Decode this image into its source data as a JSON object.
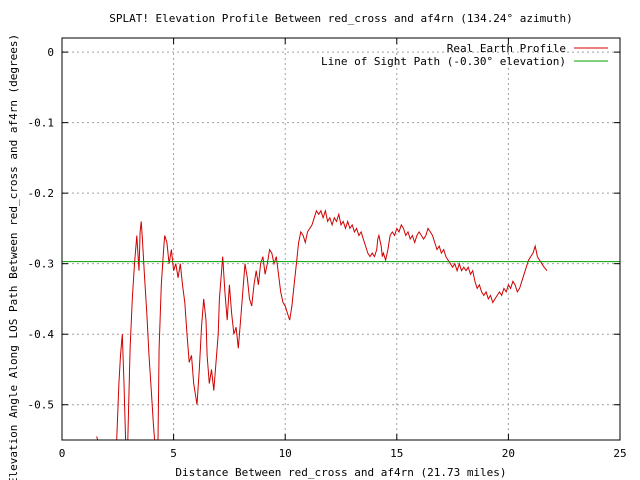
{
  "chart_data": {
    "type": "line",
    "title": "SPLAT! Elevation Profile Between red_cross and af4rn (134.24° azimuth)",
    "xlabel": "Distance Between red_cross and af4rn (21.73 miles)",
    "ylabel": "Elevation Angle Along LOS Path Between red_cross and af4rn (degrees)",
    "xlim": [
      0,
      25
    ],
    "ylim": [
      -0.55,
      0.02
    ],
    "x_ticks": [
      0,
      5,
      10,
      15,
      20,
      25
    ],
    "x_tick_labels": [
      "0",
      "5",
      "10",
      "15",
      "20",
      "25"
    ],
    "y_ticks": [
      0,
      -0.1,
      -0.2,
      -0.3,
      -0.4,
      -0.5
    ],
    "y_tick_labels": [
      "0",
      "-0.1",
      "-0.2",
      "-0.3",
      "-0.4",
      "-0.5"
    ],
    "grid": true,
    "legend_position": "top-right",
    "series": [
      {
        "name": "Real Earth Profile",
        "color": "#d00000",
        "points": [
          [
            1.55,
            -0.545
          ],
          [
            1.6,
            -0.55
          ],
          [
            2.45,
            -0.55
          ],
          [
            2.55,
            -0.47
          ],
          [
            2.62,
            -0.43
          ],
          [
            2.7,
            -0.4
          ],
          [
            2.78,
            -0.47
          ],
          [
            2.85,
            -0.55
          ],
          [
            2.95,
            -0.55
          ],
          [
            3.05,
            -0.42
          ],
          [
            3.15,
            -0.35
          ],
          [
            3.25,
            -0.3
          ],
          [
            3.35,
            -0.26
          ],
          [
            3.45,
            -0.31
          ],
          [
            3.5,
            -0.255
          ],
          [
            3.55,
            -0.24
          ],
          [
            3.6,
            -0.265
          ],
          [
            3.7,
            -0.32
          ],
          [
            3.8,
            -0.37
          ],
          [
            3.9,
            -0.43
          ],
          [
            4.0,
            -0.48
          ],
          [
            4.1,
            -0.53
          ],
          [
            4.15,
            -0.55
          ],
          [
            4.3,
            -0.55
          ],
          [
            4.35,
            -0.42
          ],
          [
            4.45,
            -0.33
          ],
          [
            4.55,
            -0.28
          ],
          [
            4.6,
            -0.26
          ],
          [
            4.7,
            -0.27
          ],
          [
            4.8,
            -0.3
          ],
          [
            4.9,
            -0.28
          ],
          [
            5.0,
            -0.31
          ],
          [
            5.1,
            -0.3
          ],
          [
            5.2,
            -0.32
          ],
          [
            5.3,
            -0.3
          ],
          [
            5.4,
            -0.33
          ],
          [
            5.5,
            -0.355
          ],
          [
            5.6,
            -0.4
          ],
          [
            5.7,
            -0.44
          ],
          [
            5.8,
            -0.43
          ],
          [
            5.9,
            -0.47
          ],
          [
            6.0,
            -0.49
          ],
          [
            6.05,
            -0.5
          ],
          [
            6.15,
            -0.45
          ],
          [
            6.25,
            -0.39
          ],
          [
            6.35,
            -0.35
          ],
          [
            6.45,
            -0.38
          ],
          [
            6.5,
            -0.43
          ],
          [
            6.6,
            -0.47
          ],
          [
            6.7,
            -0.45
          ],
          [
            6.8,
            -0.48
          ],
          [
            6.9,
            -0.44
          ],
          [
            7.0,
            -0.4
          ],
          [
            7.05,
            -0.35
          ],
          [
            7.15,
            -0.31
          ],
          [
            7.2,
            -0.29
          ],
          [
            7.3,
            -0.34
          ],
          [
            7.4,
            -0.38
          ],
          [
            7.5,
            -0.33
          ],
          [
            7.6,
            -0.37
          ],
          [
            7.7,
            -0.4
          ],
          [
            7.8,
            -0.39
          ],
          [
            7.9,
            -0.42
          ],
          [
            8.0,
            -0.38
          ],
          [
            8.1,
            -0.34
          ],
          [
            8.2,
            -0.3
          ],
          [
            8.3,
            -0.32
          ],
          [
            8.4,
            -0.35
          ],
          [
            8.5,
            -0.36
          ],
          [
            8.6,
            -0.33
          ],
          [
            8.7,
            -0.31
          ],
          [
            8.8,
            -0.33
          ],
          [
            8.9,
            -0.3
          ],
          [
            9.0,
            -0.29
          ],
          [
            9.1,
            -0.315
          ],
          [
            9.2,
            -0.3
          ],
          [
            9.3,
            -0.28
          ],
          [
            9.4,
            -0.285
          ],
          [
            9.5,
            -0.3
          ],
          [
            9.6,
            -0.29
          ],
          [
            9.7,
            -0.315
          ],
          [
            9.8,
            -0.34
          ],
          [
            9.9,
            -0.355
          ],
          [
            10.0,
            -0.36
          ],
          [
            10.1,
            -0.37
          ],
          [
            10.2,
            -0.38
          ],
          [
            10.3,
            -0.36
          ],
          [
            10.4,
            -0.33
          ],
          [
            10.5,
            -0.3
          ],
          [
            10.6,
            -0.27
          ],
          [
            10.7,
            -0.255
          ],
          [
            10.8,
            -0.26
          ],
          [
            10.9,
            -0.27
          ],
          [
            11.0,
            -0.255
          ],
          [
            11.1,
            -0.25
          ],
          [
            11.2,
            -0.245
          ],
          [
            11.3,
            -0.235
          ],
          [
            11.4,
            -0.225
          ],
          [
            11.5,
            -0.23
          ],
          [
            11.6,
            -0.225
          ],
          [
            11.7,
            -0.235
          ],
          [
            11.8,
            -0.225
          ],
          [
            11.9,
            -0.24
          ],
          [
            12.0,
            -0.235
          ],
          [
            12.1,
            -0.245
          ],
          [
            12.2,
            -0.235
          ],
          [
            12.3,
            -0.24
          ],
          [
            12.4,
            -0.23
          ],
          [
            12.5,
            -0.245
          ],
          [
            12.6,
            -0.24
          ],
          [
            12.7,
            -0.25
          ],
          [
            12.8,
            -0.24
          ],
          [
            12.9,
            -0.25
          ],
          [
            13.0,
            -0.245
          ],
          [
            13.1,
            -0.255
          ],
          [
            13.2,
            -0.25
          ],
          [
            13.3,
            -0.26
          ],
          [
            13.4,
            -0.255
          ],
          [
            13.5,
            -0.265
          ],
          [
            13.6,
            -0.275
          ],
          [
            13.7,
            -0.285
          ],
          [
            13.8,
            -0.29
          ],
          [
            13.9,
            -0.285
          ],
          [
            14.0,
            -0.29
          ],
          [
            14.1,
            -0.28
          ],
          [
            14.15,
            -0.265
          ],
          [
            14.2,
            -0.26
          ],
          [
            14.3,
            -0.275
          ],
          [
            14.35,
            -0.29
          ],
          [
            14.4,
            -0.285
          ],
          [
            14.5,
            -0.295
          ],
          [
            14.6,
            -0.28
          ],
          [
            14.7,
            -0.26
          ],
          [
            14.8,
            -0.255
          ],
          [
            14.9,
            -0.26
          ],
          [
            15.0,
            -0.25
          ],
          [
            15.1,
            -0.255
          ],
          [
            15.2,
            -0.245
          ],
          [
            15.3,
            -0.25
          ],
          [
            15.4,
            -0.26
          ],
          [
            15.5,
            -0.255
          ],
          [
            15.6,
            -0.265
          ],
          [
            15.7,
            -0.26
          ],
          [
            15.8,
            -0.27
          ],
          [
            15.9,
            -0.26
          ],
          [
            16.0,
            -0.255
          ],
          [
            16.1,
            -0.26
          ],
          [
            16.2,
            -0.265
          ],
          [
            16.3,
            -0.26
          ],
          [
            16.4,
            -0.25
          ],
          [
            16.5,
            -0.255
          ],
          [
            16.6,
            -0.26
          ],
          [
            16.7,
            -0.27
          ],
          [
            16.8,
            -0.28
          ],
          [
            16.9,
            -0.275
          ],
          [
            17.0,
            -0.285
          ],
          [
            17.1,
            -0.28
          ],
          [
            17.2,
            -0.29
          ],
          [
            17.3,
            -0.295
          ],
          [
            17.4,
            -0.3
          ],
          [
            17.5,
            -0.305
          ],
          [
            17.6,
            -0.3
          ],
          [
            17.7,
            -0.31
          ],
          [
            17.8,
            -0.3
          ],
          [
            17.9,
            -0.31
          ],
          [
            18.0,
            -0.305
          ],
          [
            18.1,
            -0.31
          ],
          [
            18.2,
            -0.305
          ],
          [
            18.3,
            -0.315
          ],
          [
            18.4,
            -0.31
          ],
          [
            18.5,
            -0.325
          ],
          [
            18.6,
            -0.335
          ],
          [
            18.7,
            -0.33
          ],
          [
            18.8,
            -0.34
          ],
          [
            18.9,
            -0.345
          ],
          [
            19.0,
            -0.34
          ],
          [
            19.1,
            -0.35
          ],
          [
            19.2,
            -0.345
          ],
          [
            19.3,
            -0.355
          ],
          [
            19.4,
            -0.35
          ],
          [
            19.5,
            -0.345
          ],
          [
            19.6,
            -0.34
          ],
          [
            19.7,
            -0.345
          ],
          [
            19.8,
            -0.335
          ],
          [
            19.9,
            -0.34
          ],
          [
            20.0,
            -0.33
          ],
          [
            20.1,
            -0.335
          ],
          [
            20.2,
            -0.325
          ],
          [
            20.3,
            -0.33
          ],
          [
            20.4,
            -0.34
          ],
          [
            20.5,
            -0.335
          ],
          [
            20.6,
            -0.325
          ],
          [
            20.7,
            -0.315
          ],
          [
            20.8,
            -0.305
          ],
          [
            20.9,
            -0.295
          ],
          [
            21.0,
            -0.29
          ],
          [
            21.1,
            -0.285
          ],
          [
            21.2,
            -0.275
          ],
          [
            21.3,
            -0.29
          ],
          [
            21.4,
            -0.295
          ],
          [
            21.5,
            -0.3
          ],
          [
            21.6,
            -0.305
          ],
          [
            21.73,
            -0.31
          ]
        ]
      },
      {
        "name": "Line of Sight Path (-0.30° elevation)",
        "color": "#00a000",
        "points": [
          [
            0,
            -0.297
          ],
          [
            25,
            -0.297
          ]
        ]
      }
    ]
  }
}
